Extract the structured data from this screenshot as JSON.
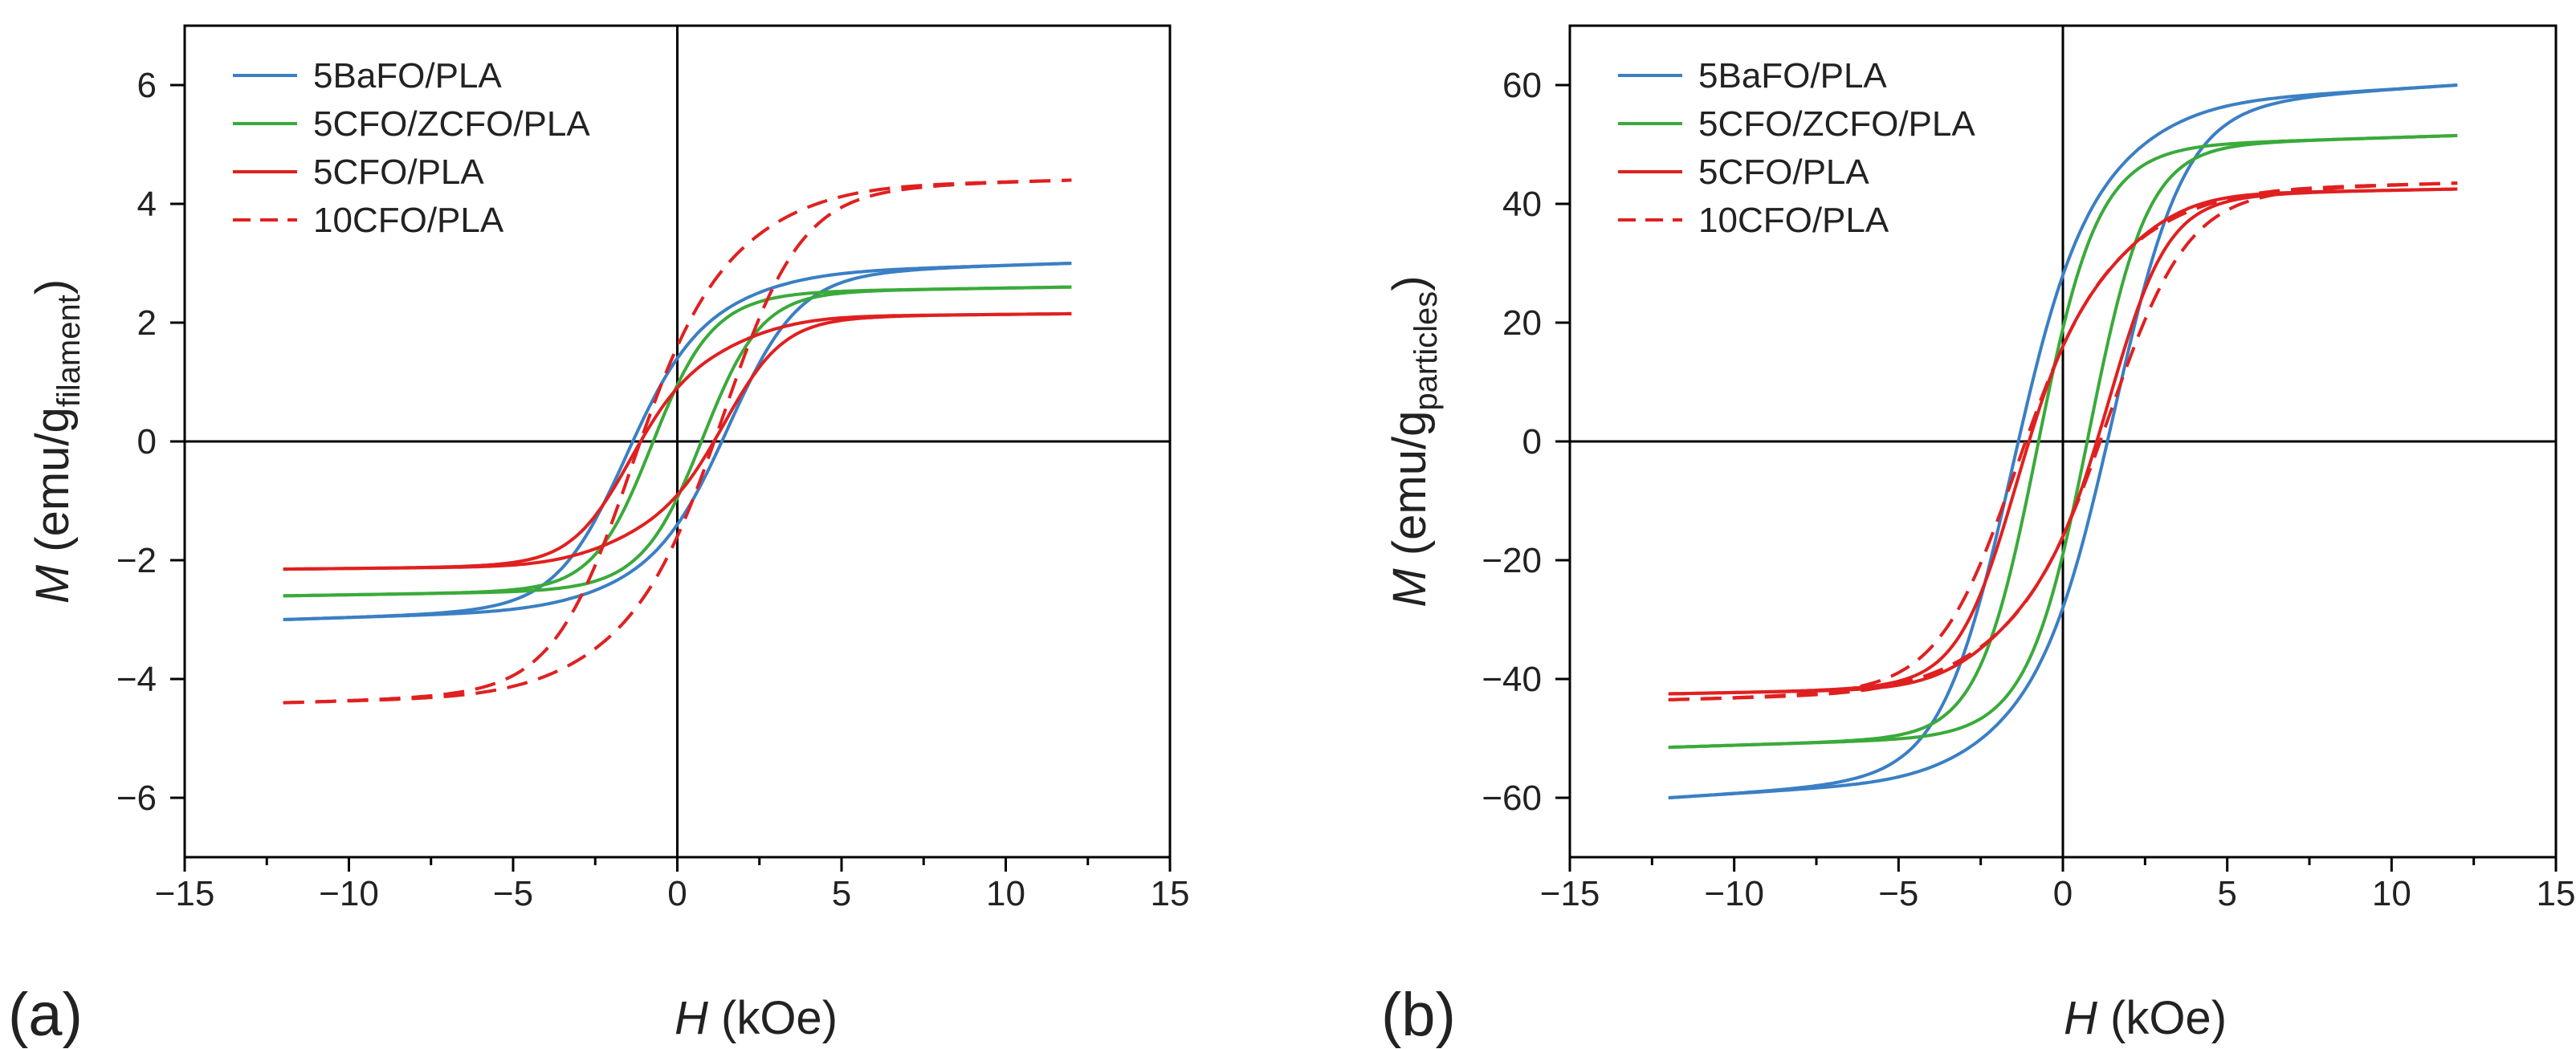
{
  "chart_data": [
    {
      "type": "line",
      "panel_label": "(a)",
      "xlabel_italic": "H",
      "xlabel_rest": " (kOe)",
      "ylabel_italic": "M",
      "ylabel_rest": " (emu/g",
      "ylabel_sub": "filament",
      "ylabel_close": ")",
      "xlim": [
        -15,
        15
      ],
      "ylim": [
        -7,
        7
      ],
      "xticks": [
        -15,
        -10,
        -5,
        0,
        5,
        10,
        15
      ],
      "xtick_labels": [
        "−15",
        "−10",
        "−5",
        "0",
        "5",
        "10",
        "15"
      ],
      "yticks": [
        -6,
        -4,
        -2,
        0,
        2,
        4,
        6
      ],
      "ytick_labels": [
        "−6",
        "−4",
        "−2",
        "0",
        "2",
        "4",
        "6"
      ],
      "legend_position": "top-left",
      "series": [
        {
          "name": "5BaFO/PLA",
          "color": "#3b7fc4",
          "dash": false,
          "ms": 3.0,
          "hc": 1.6,
          "mr": 1.4,
          "h0": 2.2,
          "slope": 0.07
        },
        {
          "name": "5CFO/ZCFO/PLA",
          "color": "#3aaa3a",
          "dash": false,
          "ms": 2.6,
          "hc": 0.8,
          "mr": 0.95,
          "h0": 1.8,
          "slope": 0.04
        },
        {
          "name": "5CFO/PLA",
          "color": "#e02020",
          "dash": false,
          "ms": 2.15,
          "hc": 1.5,
          "mr": 0.9,
          "h0": 1.9,
          "slope": 0.03
        },
        {
          "name": "10CFO/PLA",
          "color": "#e02020",
          "dash": true,
          "ms": 4.4,
          "hc": 1.5,
          "mr": 1.6,
          "h0": 2.5,
          "slope": 0.04
        }
      ]
    },
    {
      "type": "line",
      "panel_label": "(b)",
      "xlabel_italic": "H",
      "xlabel_rest": " (kOe)",
      "ylabel_italic": "M",
      "ylabel_rest": " (emu/g",
      "ylabel_sub": "particles",
      "ylabel_close": ")",
      "xlim": [
        -15,
        15
      ],
      "ylim": [
        -70,
        70
      ],
      "xticks": [
        -15,
        -10,
        -5,
        0,
        5,
        10,
        15
      ],
      "xtick_labels": [
        "−15",
        "−10",
        "−5",
        "0",
        "5",
        "10",
        "15"
      ],
      "yticks": [
        -60,
        -40,
        -20,
        0,
        20,
        40,
        60
      ],
      "ytick_labels": [
        "−60",
        "−40",
        "−20",
        "0",
        "20",
        "40",
        "60"
      ],
      "legend_position": "top-left",
      "series": [
        {
          "name": "5BaFO/PLA",
          "color": "#3b7fc4",
          "dash": false,
          "ms": 60,
          "hc": 1.6,
          "mr": 28,
          "h0": 2.2,
          "slope": 0.07
        },
        {
          "name": "5CFO/ZCFO/PLA",
          "color": "#3aaa3a",
          "dash": false,
          "ms": 51.5,
          "hc": 0.8,
          "mr": 19,
          "h0": 1.8,
          "slope": 0.04
        },
        {
          "name": "5CFO/PLA",
          "color": "#e02020",
          "dash": false,
          "ms": 42.5,
          "hc": 1.5,
          "mr": 16,
          "h0": 1.9,
          "slope": 0.03
        },
        {
          "name": "10CFO/PLA",
          "color": "#e02020",
          "dash": true,
          "ms": 43.5,
          "hc": 1.5,
          "mr": 16,
          "h0": 2.5,
          "slope": 0.04
        }
      ]
    }
  ]
}
